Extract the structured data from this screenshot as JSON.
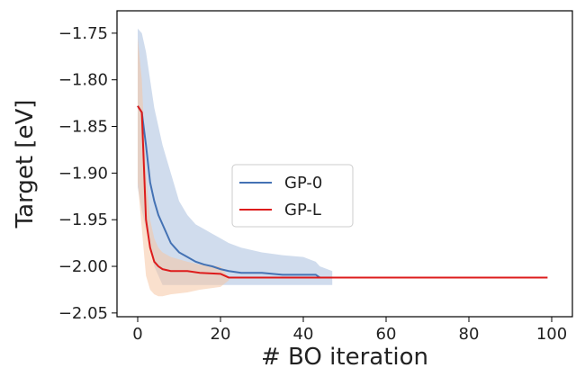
{
  "chart_data": {
    "type": "line",
    "xlabel": "# BO iteration",
    "ylabel": "Target [eV]",
    "xlim": [
      -5,
      105
    ],
    "ylim": [
      -2.054,
      -1.726
    ],
    "xticks": [
      0,
      20,
      40,
      60,
      80,
      100
    ],
    "yticks": [
      {
        "value": -1.75,
        "label": "−1.75"
      },
      {
        "value": -1.8,
        "label": "−1.80"
      },
      {
        "value": -1.85,
        "label": "−1.85"
      },
      {
        "value": -1.9,
        "label": "−1.90"
      },
      {
        "value": -1.95,
        "label": "−1.95"
      },
      {
        "value": -2.0,
        "label": "−2.00"
      },
      {
        "value": -2.05,
        "label": "−2.05"
      }
    ],
    "grid": false,
    "legend": "center",
    "series": [
      {
        "name": "GP-0",
        "color": "#4472b4",
        "band_color": "#a9c0de",
        "x": [
          0,
          1,
          2,
          3,
          4,
          5,
          6,
          7,
          8,
          9,
          10,
          12,
          14,
          16,
          18,
          20,
          22,
          25,
          30,
          35,
          40,
          43,
          44,
          47
        ],
        "values": [
          -1.828,
          -1.835,
          -1.87,
          -1.91,
          -1.93,
          -1.945,
          -1.955,
          -1.965,
          -1.975,
          -1.98,
          -1.985,
          -1.99,
          -1.995,
          -1.998,
          -2.0,
          -2.003,
          -2.005,
          -2.007,
          -2.007,
          -2.009,
          -2.009,
          -2.009,
          -2.012,
          null
        ],
        "upper": [
          -1.745,
          -1.75,
          -1.77,
          -1.8,
          -1.83,
          -1.85,
          -1.87,
          -1.885,
          -1.9,
          -1.915,
          -1.93,
          -1.945,
          -1.955,
          -1.96,
          -1.965,
          -1.97,
          -1.975,
          -1.98,
          -1.985,
          -1.988,
          -1.99,
          -1.995,
          -2.0,
          -2.005
        ],
        "lower": [
          -1.915,
          -1.94,
          -1.96,
          -1.98,
          -2.0,
          -2.01,
          -2.02,
          -2.02,
          -2.02,
          -2.02,
          -2.02,
          -2.02,
          -2.02,
          -2.02,
          -2.02,
          -2.02,
          -2.02,
          -2.02,
          -2.02,
          -2.02,
          -2.02,
          -2.02,
          -2.02,
          -2.02
        ]
      },
      {
        "name": "GP-L",
        "color": "#dd1c1c",
        "band_color": "#f6c6a4",
        "x": [
          0,
          1,
          2,
          3,
          4,
          5,
          6,
          8,
          12,
          15,
          20,
          22,
          99
        ],
        "values": [
          -1.828,
          -1.835,
          -1.95,
          -1.98,
          -1.995,
          -2.0,
          -2.003,
          -2.005,
          -2.005,
          -2.007,
          -2.008,
          -2.012,
          -2.012
        ],
        "upper": [
          -1.755,
          -1.8,
          -1.9,
          -1.95,
          -1.97,
          -1.98,
          -1.985,
          -1.99,
          -1.995,
          -1.998,
          -2.0,
          -2.012,
          null
        ],
        "lower": [
          -1.91,
          -1.96,
          -2.01,
          -2.025,
          -2.03,
          -2.032,
          -2.032,
          -2.03,
          -2.028,
          -2.025,
          -2.022,
          -2.015,
          null
        ]
      }
    ]
  }
}
